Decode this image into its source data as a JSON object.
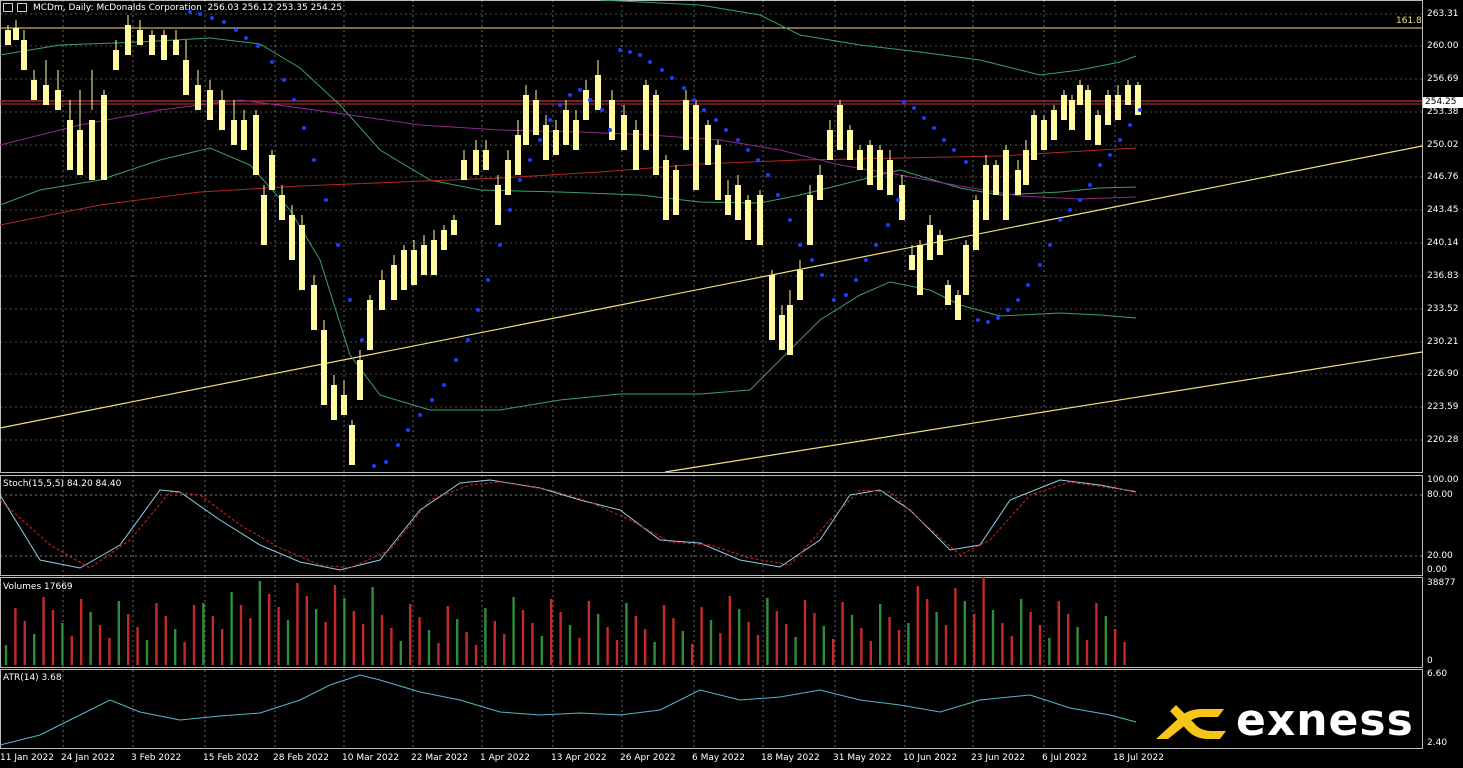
{
  "window": {
    "title": "MCDm, Daily: McDonalds Corporation",
    "ohlc": "256.03 256.12 253.35 254.25"
  },
  "price_axis": {
    "labels": [
      "263.31",
      "260.00",
      "256.69",
      "253.38",
      "250.02",
      "246.76",
      "243.45",
      "240.14",
      "236.83",
      "233.52",
      "230.21",
      "226.90",
      "223.59",
      "220.28"
    ],
    "current_price": "254.25",
    "fib_label": "161.8"
  },
  "stoch": {
    "title": "Stoch(15,5,5) 84.20 84.40",
    "axis": [
      "100.00",
      "80.00",
      "20.00",
      "0.00"
    ]
  },
  "volumes": {
    "title": "Volumes 17669",
    "axis": [
      "38877",
      "0"
    ]
  },
  "atr": {
    "title": "ATR(14) 3.68",
    "axis": [
      "6.60",
      "2.40"
    ]
  },
  "dates": [
    "11 Jan 2022",
    "24 Jan 2022",
    "3 Feb 2022",
    "15 Feb 2022",
    "28 Feb 2022",
    "10 Mar 2022",
    "22 Mar 2022",
    "1 Apr 2022",
    "13 Apr 2022",
    "26 Apr 2022",
    "6 May 2022",
    "18 May 2022",
    "31 May 2022",
    "10 Jun 2022",
    "23 Jun 2022",
    "6 Jul 2022",
    "18 Jul 2022"
  ],
  "brand": {
    "name": "exness",
    "accent": "#f5c518"
  },
  "colors": {
    "candle": "#fffaa0",
    "sar": "#1a3cff",
    "bollinger": "#3aa06a",
    "ma_slow": "#b02828",
    "ma_mid": "#8e2a8e",
    "trendline": "#f2e07a",
    "stoch_main": "#8ecde6",
    "stoch_signal": "#d62020",
    "vol_up": "#2f8f3a",
    "vol_down": "#c42a2a",
    "atr": "#58b6cf",
    "grid": "#ffffff"
  }
}
